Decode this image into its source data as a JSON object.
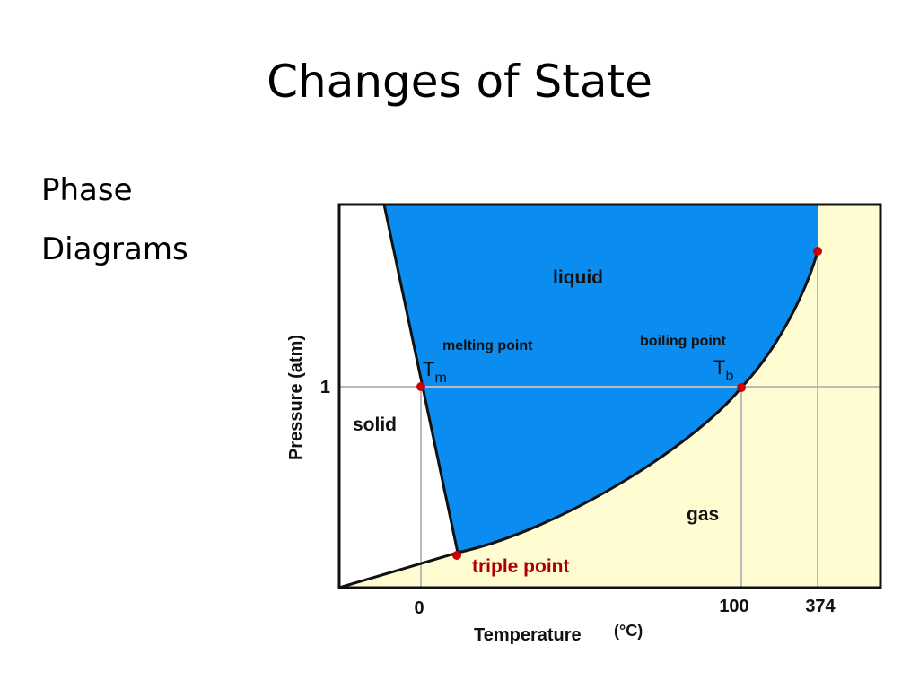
{
  "slide": {
    "title": "Changes of State",
    "body_lines": [
      "Phase",
      "Diagrams"
    ]
  },
  "diagram": {
    "regions": {
      "liquid": "liquid",
      "solid": "solid",
      "gas": "gas"
    },
    "annotations": {
      "melting_point": "melting point",
      "boiling_point": "boiling point",
      "triple_point": "triple point",
      "tm_main": "T",
      "tm_sub": "m",
      "tb_main": "T",
      "tb_sub": "b"
    },
    "axes": {
      "y_label": "Pressure (atm)",
      "y_tick": "1",
      "x_label": "Temperature",
      "x_unit": "(°C)",
      "x_ticks": [
        "0",
        "100",
        "374"
      ]
    },
    "colors": {
      "liquid": "#0a8cf0",
      "gas": "#fffcd2",
      "solid": "#ffffff",
      "points": "#cc0000",
      "triple_point_text": "#aa0000",
      "grid": "#bbbbbb"
    }
  }
}
